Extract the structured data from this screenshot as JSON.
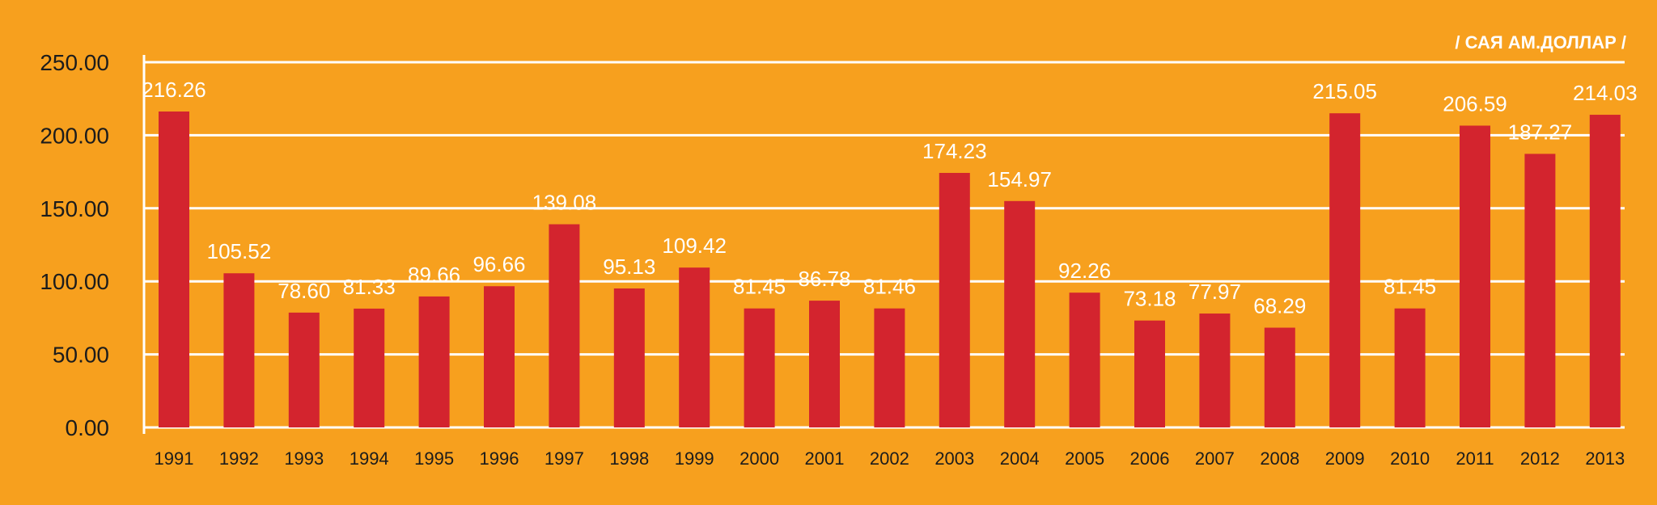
{
  "chart_data": {
    "type": "bar",
    "unit_label": "/ САЯ АМ.ДОЛЛАР /",
    "categories": [
      "1991",
      "1992",
      "1993",
      "1994",
      "1995",
      "1996",
      "1997",
      "1998",
      "1999",
      "2000",
      "2001",
      "2002",
      "2003",
      "2004",
      "2005",
      "2006",
      "2007",
      "2008",
      "2009",
      "2010",
      "2011",
      "2012",
      "2013"
    ],
    "values": [
      216.26,
      105.52,
      78.6,
      81.33,
      89.66,
      96.66,
      139.08,
      95.13,
      109.42,
      81.45,
      86.78,
      81.46,
      174.23,
      154.97,
      92.26,
      73.18,
      77.97,
      68.29,
      215.05,
      81.45,
      206.59,
      187.27,
      214.03
    ],
    "data_labels": [
      "216.26",
      "105.52",
      "78.60",
      "81.33",
      "89.66",
      "96.66",
      "139.08",
      "95.13",
      "109.42",
      "81.45",
      "86.78",
      "81.46",
      "174.23",
      "154.97",
      "92.26",
      "73.18",
      "77.97",
      "68.29",
      "215.05",
      "81.45",
      "206.59",
      "187.27",
      "214.03"
    ],
    "yticks": [
      "0.00",
      "50.00",
      "100.00",
      "150.00",
      "200.00",
      "250.00"
    ],
    "ylim": [
      0,
      250
    ],
    "grid": true,
    "colors": {
      "bar": "#D3242E",
      "grid": "#ffffff",
      "label": "#ffffff",
      "background": "#F7A01E"
    }
  }
}
